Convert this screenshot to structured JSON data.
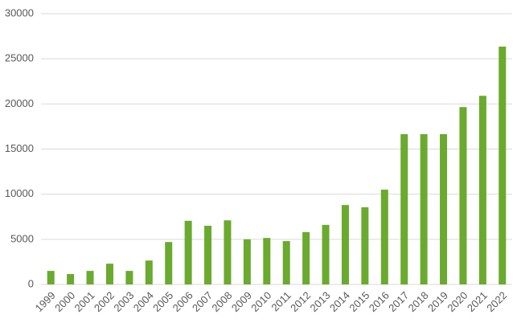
{
  "chart_data": {
    "type": "bar",
    "categories": [
      "1999",
      "2000",
      "2001",
      "2002",
      "2003",
      "2004",
      "2005",
      "2006",
      "2007",
      "2008",
      "2009",
      "2010",
      "2011",
      "2012",
      "2013",
      "2014",
      "2015",
      "2016",
      "2017",
      "2018",
      "2019",
      "2020",
      "2021",
      "2022"
    ],
    "values": [
      1500,
      1150,
      1500,
      2300,
      1500,
      2650,
      4700,
      7050,
      6500,
      7100,
      5000,
      5150,
      4800,
      5800,
      6600,
      8800,
      8550,
      10500,
      16650,
      16650,
      16650,
      19650,
      20900,
      26350
    ],
    "color": "#6aaa2e",
    "ylim": [
      0,
      30000
    ],
    "yticks": [
      0,
      5000,
      10000,
      15000,
      20000,
      25000,
      30000
    ],
    "grid": true
  }
}
